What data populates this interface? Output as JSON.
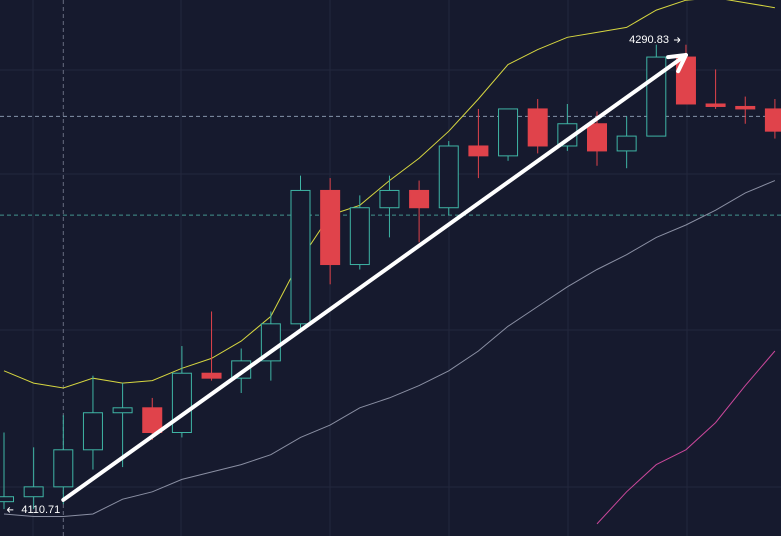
{
  "chart_data": {
    "type": "candlestick",
    "ylim": [
      4096.1,
      4313.1
    ],
    "up_color": "#3fb5a5",
    "down_color": "#e0434b",
    "open": [
      4110,
      4112,
      4116,
      4131,
      4146,
      4148,
      4138,
      4162,
      4160,
      4167,
      4182,
      4236,
      4206,
      4229,
      4236,
      4229,
      4254,
      4250,
      4269,
      4254,
      4263,
      4252,
      4258,
      4290,
      4271,
      4270,
      4269
    ],
    "high": [
      4138,
      4132,
      4145,
      4161,
      4158,
      4152,
      4173,
      4187,
      4172,
      4187,
      4242,
      4241,
      4234,
      4242,
      4240,
      4256,
      4269,
      4269,
      4273,
      4271,
      4268,
      4266,
      4295,
      4295,
      4285,
      4274,
      4273
    ],
    "low": [
      4107,
      4107,
      4109,
      4123,
      4124,
      4135,
      4136,
      4159,
      4154,
      4159,
      4180,
      4198,
      4204,
      4217,
      4215,
      4226,
      4241,
      4248,
      4251,
      4252,
      4246,
      4245,
      4258,
      4271,
      4269,
      4263,
      4257
    ],
    "close": [
      4112,
      4116,
      4131,
      4146,
      4148,
      4138,
      4162,
      4160,
      4167,
      4182,
      4236,
      4206,
      4229,
      4236,
      4229,
      4254,
      4250,
      4269,
      4254,
      4263,
      4252,
      4258,
      4290,
      4271,
      4270,
      4269,
      4260
    ],
    "series": [
      {
        "color": "#d6d640",
        "values": [
          4163,
          4158,
          4156,
          4160,
          4158,
          4159,
          4164,
          4168,
          4175,
          4185,
          4208,
          4226,
          4230,
          4240,
          4249,
          4260,
          4273,
          4287,
          4293,
          4298,
          4300,
          4302,
          4309,
          4313,
          4314,
          4312,
          4310
        ]
      },
      {
        "color": "#8a8fa3",
        "values": [
          4105,
          4104,
          4104,
          4105,
          4111,
          4114,
          4119,
          4122,
          4125,
          4129,
          4136,
          4141,
          4148,
          4152,
          4157,
          4163,
          4171,
          4181,
          4189,
          4197,
          4204,
          4210,
          4217,
          4222,
          4228,
          4235,
          4240
        ]
      },
      {
        "color": "#c9479a",
        "values": [
          null,
          null,
          null,
          null,
          null,
          null,
          null,
          null,
          null,
          null,
          null,
          null,
          null,
          null,
          null,
          null,
          null,
          null,
          null,
          null,
          4101,
          4114,
          4125,
          4131,
          4142,
          4157,
          4171
        ]
      }
    ],
    "price_lines": [
      {
        "value": 4266,
        "color": "#9fb3c8"
      },
      {
        "value": 4226,
        "color": "#4fb3a8"
      }
    ],
    "arrow": {
      "x": [
        2,
        23
      ],
      "y": [
        4110.71,
        4290.83
      ],
      "color": "#ffffff"
    }
  }
}
